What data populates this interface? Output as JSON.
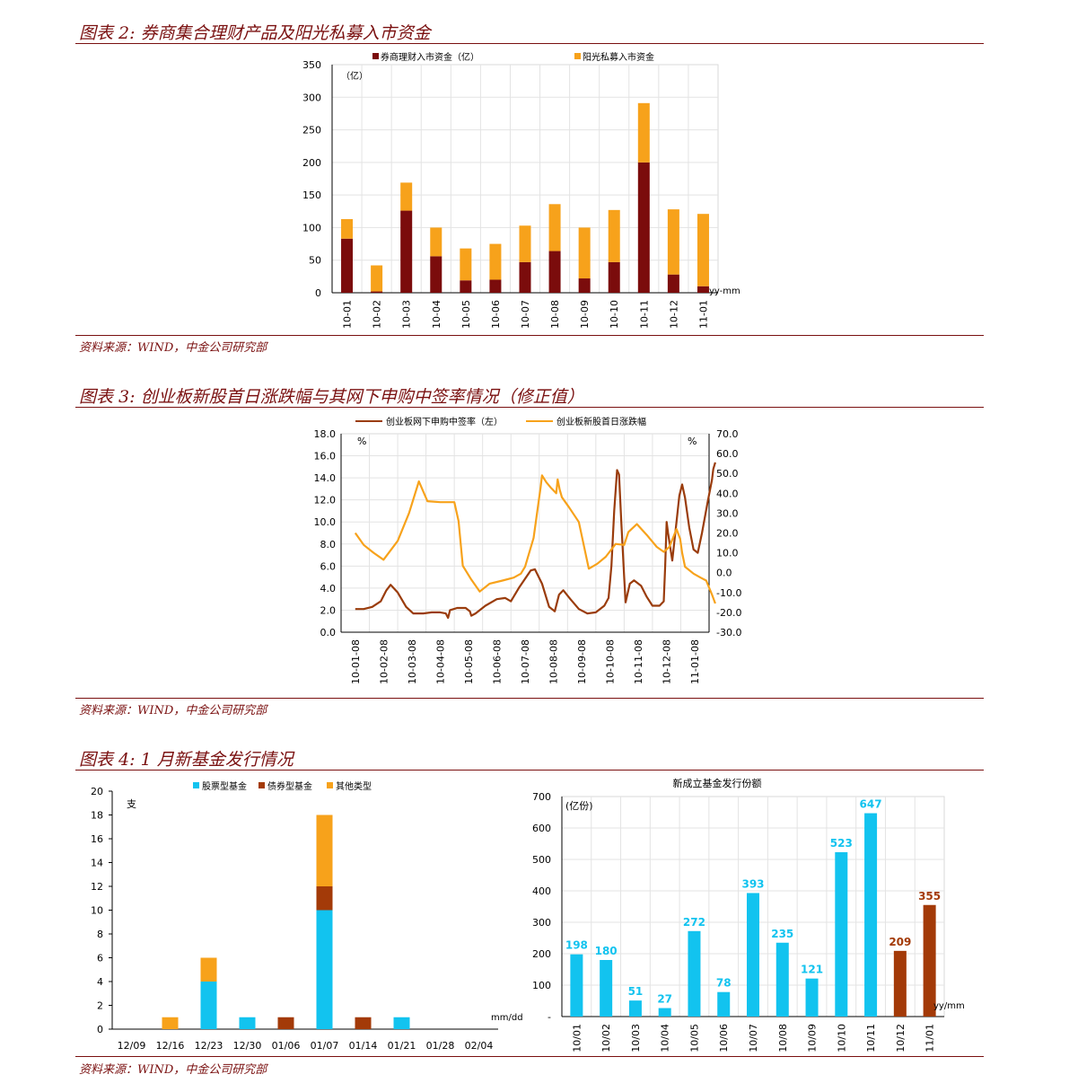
{
  "figure2": {
    "title": "图表 2:  券商集合理财产品及阳光私募入市资金",
    "source": "资料来源：WIND，中金公司研究部",
    "chart_data": {
      "type": "bar",
      "stacked": true,
      "categories": [
        "10-01",
        "10-02",
        "10-03",
        "10-04",
        "10-05",
        "10-06",
        "10-07",
        "10-08",
        "10-09",
        "10-10",
        "10-11",
        "10-12",
        "11-01"
      ],
      "series": [
        {
          "name": "券商理财入市资金（亿）",
          "color": "#7b0c0c",
          "values": [
            83,
            2,
            126,
            56,
            19,
            20,
            47,
            64,
            22,
            47,
            200,
            28,
            10
          ]
        },
        {
          "name": "阳光私募入市资金",
          "color": "#f7a21b",
          "values": [
            30,
            40,
            43,
            44,
            49,
            55,
            56,
            72,
            78,
            80,
            91,
            100,
            111
          ]
        }
      ],
      "ylim": [
        0,
        350
      ],
      "yticks": [
        0,
        50,
        100,
        150,
        200,
        250,
        300,
        350
      ],
      "unit_label": "（亿）",
      "x_unit": "yy-mm",
      "grid": true,
      "legend": "top"
    }
  },
  "figure3": {
    "title": "图表 3:  创业板新股首日涨跌幅与其网下申购中签率情况（修正值）",
    "source": "资料来源：WIND，中金公司研究部",
    "chart_data": {
      "type": "line",
      "x_ticks": [
        "10-01-08",
        "10-02-08",
        "10-03-08",
        "10-04-08",
        "10-05-08",
        "10-06-08",
        "10-07-08",
        "10-08-08",
        "10-09-08",
        "10-10-08",
        "10-11-08",
        "10-12-08",
        "11-01-08"
      ],
      "series": [
        {
          "name": "创业板网下申购中签率（左）",
          "axis": "left",
          "color": "#9a3c0c",
          "points": [
            [
              0,
              2.1
            ],
            [
              0.3,
              2.1
            ],
            [
              0.6,
              2.3
            ],
            [
              0.9,
              2.8
            ],
            [
              1.1,
              3.8
            ],
            [
              1.25,
              4.3
            ],
            [
              1.5,
              3.6
            ],
            [
              1.8,
              2.3
            ],
            [
              2.05,
              1.7
            ],
            [
              2.4,
              1.7
            ],
            [
              2.7,
              1.8
            ],
            [
              3.0,
              1.8
            ],
            [
              3.2,
              1.7
            ],
            [
              3.28,
              1.3
            ],
            [
              3.35,
              2.0
            ],
            [
              3.6,
              2.2
            ],
            [
              3.9,
              2.2
            ],
            [
              4.05,
              1.9
            ],
            [
              4.1,
              1.5
            ],
            [
              4.25,
              1.7
            ],
            [
              4.6,
              2.4
            ],
            [
              5.0,
              3.0
            ],
            [
              5.3,
              3.1
            ],
            [
              5.5,
              2.8
            ],
            [
              5.8,
              4.1
            ],
            [
              6.2,
              5.6
            ],
            [
              6.35,
              5.7
            ],
            [
              6.6,
              4.4
            ],
            [
              6.85,
              2.3
            ],
            [
              7.05,
              1.9
            ],
            [
              7.2,
              3.4
            ],
            [
              7.35,
              3.8
            ],
            [
              7.6,
              3.0
            ],
            [
              7.9,
              2.1
            ],
            [
              8.2,
              1.7
            ],
            [
              8.5,
              1.8
            ],
            [
              8.8,
              2.4
            ],
            [
              8.95,
              3.1
            ],
            [
              9.05,
              6.0
            ],
            [
              9.15,
              11.0
            ],
            [
              9.25,
              14.7
            ],
            [
              9.32,
              14.3
            ],
            [
              9.4,
              10.0
            ],
            [
              9.5,
              5.0
            ],
            [
              9.55,
              2.7
            ],
            [
              9.7,
              4.4
            ],
            [
              9.85,
              4.7
            ],
            [
              10.1,
              4.2
            ],
            [
              10.3,
              3.2
            ],
            [
              10.5,
              2.4
            ],
            [
              10.75,
              2.4
            ],
            [
              10.9,
              2.8
            ],
            [
              10.95,
              6.0
            ],
            [
              11.0,
              10.0
            ],
            [
              11.05,
              9.0
            ],
            [
              11.2,
              6.5
            ],
            [
              11.35,
              10.0
            ],
            [
              11.45,
              12.4
            ],
            [
              11.55,
              13.4
            ],
            [
              11.65,
              12.2
            ],
            [
              11.8,
              9.5
            ],
            [
              11.95,
              7.5
            ],
            [
              12.1,
              7.2
            ],
            [
              12.25,
              9.0
            ],
            [
              12.45,
              11.8
            ],
            [
              12.6,
              13.8
            ],
            [
              12.65,
              14.8
            ],
            [
              12.72,
              15.4
            ]
          ]
        },
        {
          "name": "创业板新股首日涨跌幅",
          "axis": "right",
          "color": "#f7a21b",
          "points": [
            [
              0,
              20.0
            ],
            [
              0.3,
              14.0
            ],
            [
              0.65,
              10.0
            ],
            [
              1.0,
              6.5
            ],
            [
              1.5,
              16.0
            ],
            [
              1.9,
              30.0
            ],
            [
              2.25,
              46.0
            ],
            [
              2.55,
              36.0
            ],
            [
              3.0,
              35.5
            ],
            [
              3.5,
              35.5
            ],
            [
              3.65,
              26.0
            ],
            [
              3.8,
              3.5
            ],
            [
              4.1,
              -3.5
            ],
            [
              4.4,
              -9.5
            ],
            [
              4.75,
              -5.5
            ],
            [
              5.2,
              -4.0
            ],
            [
              5.6,
              -2.5
            ],
            [
              5.85,
              -0.5
            ],
            [
              6.0,
              3.0
            ],
            [
              6.3,
              17.5
            ],
            [
              6.55,
              43.0
            ],
            [
              6.6,
              49.0
            ],
            [
              6.75,
              45.5
            ],
            [
              6.9,
              43.0
            ],
            [
              7.1,
              40.0
            ],
            [
              7.15,
              47.0
            ],
            [
              7.22,
              42.0
            ],
            [
              7.3,
              38.0
            ],
            [
              7.55,
              33.0
            ],
            [
              7.9,
              25.5
            ],
            [
              8.25,
              2.0
            ],
            [
              8.55,
              4.5
            ],
            [
              8.85,
              8.0
            ],
            [
              9.2,
              14.5
            ],
            [
              9.5,
              14.0
            ],
            [
              9.65,
              20.5
            ],
            [
              9.95,
              24.5
            ],
            [
              10.3,
              19.0
            ],
            [
              10.65,
              13.0
            ],
            [
              10.9,
              10.5
            ],
            [
              11.1,
              13.0
            ],
            [
              11.35,
              22.0
            ],
            [
              11.48,
              17.0
            ],
            [
              11.55,
              10.0
            ],
            [
              11.65,
              3.0
            ],
            [
              11.95,
              -0.5
            ],
            [
              12.2,
              -2.5
            ],
            [
              12.4,
              -4.0
            ],
            [
              12.6,
              -11.0
            ],
            [
              12.72,
              -15.5
            ]
          ]
        }
      ],
      "left_ylim": [
        0,
        18
      ],
      "left_yticks": [
        "0.0",
        "2.0",
        "4.0",
        "6.0",
        "8.0",
        "10.0",
        "12.0",
        "14.0",
        "16.0",
        "18.0"
      ],
      "right_ylim": [
        -30,
        70
      ],
      "right_yticks": [
        "-30.0",
        "-20.0",
        "-10.0",
        "0.0",
        "10.0",
        "20.0",
        "30.0",
        "40.0",
        "50.0",
        "60.0",
        "70.0"
      ],
      "left_unit": "%",
      "right_unit": "%",
      "grid": true,
      "legend": "top"
    }
  },
  "figure4": {
    "title": "图表 4:  1 月新基金发行情况",
    "source": "资料来源：WIND，中金公司研究部",
    "chart_data": [
      {
        "type": "bar",
        "stacked": true,
        "categories": [
          "12/09",
          "12/16",
          "12/23",
          "12/30",
          "01/06",
          "01/07",
          "01/14",
          "01/21",
          "01/28",
          "02/04"
        ],
        "series": [
          {
            "name": "股票型基金",
            "color": "#12c3ef",
            "values": [
              0,
              0,
              4,
              1,
              0,
              10,
              0,
              1,
              0,
              0
            ]
          },
          {
            "name": "债券型基金",
            "color": "#a33a08",
            "values": [
              0,
              0,
              0,
              0,
              1,
              2,
              1,
              0,
              0,
              0
            ]
          },
          {
            "name": "其他类型",
            "color": "#f7a21b",
            "values": [
              0,
              1,
              2,
              0,
              0,
              6,
              0,
              0,
              0,
              0
            ]
          }
        ],
        "ylim": [
          0,
          20
        ],
        "yticks": [
          0,
          2,
          4,
          6,
          8,
          10,
          12,
          14,
          16,
          18,
          20
        ],
        "unit_label": "支",
        "x_unit": "mm/dd",
        "grid": false,
        "legend": "top"
      },
      {
        "type": "bar",
        "title": "新成立基金发行份额",
        "categories": [
          "10/01",
          "10/02",
          "10/03",
          "10/04",
          "10/05",
          "10/06",
          "10/07",
          "10/08",
          "10/09",
          "10/10",
          "10/11",
          "10/12",
          "11/01"
        ],
        "values": [
          198,
          180,
          51,
          27,
          272,
          78,
          393,
          235,
          121,
          523,
          647,
          209,
          355
        ],
        "colors": [
          "#12c3ef",
          "#12c3ef",
          "#12c3ef",
          "#12c3ef",
          "#12c3ef",
          "#12c3ef",
          "#12c3ef",
          "#12c3ef",
          "#12c3ef",
          "#12c3ef",
          "#12c3ef",
          "#a33a08",
          "#a33a08"
        ],
        "ylim": [
          0,
          700
        ],
        "yticks": [
          "-",
          "100",
          "200",
          "300",
          "400",
          "500",
          "600",
          "700"
        ],
        "unit_label": "(亿份)",
        "x_unit": "yy/mm",
        "grid": true,
        "legend": "none"
      }
    ]
  }
}
